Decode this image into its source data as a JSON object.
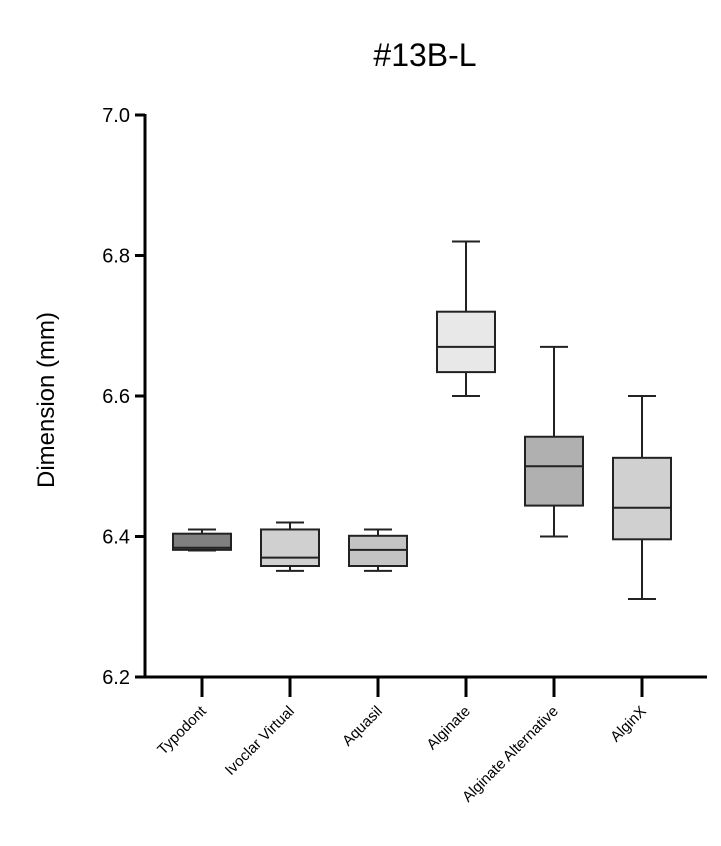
{
  "chart_data": {
    "type": "box",
    "title": "#13B-L",
    "xlabel": "",
    "ylabel": "Dimension (mm)",
    "ylim": [
      6.2,
      7.0
    ],
    "yticks": [
      "6.2",
      "6.4",
      "6.6",
      "6.8",
      "7.0"
    ],
    "grid": false,
    "categories": [
      "Typodont",
      "Ivoclar Virtual",
      "Aquasil",
      "Alginate",
      "Alginate Alternative",
      "AlginX"
    ],
    "boxes": [
      {
        "category": "Typodont",
        "min": 6.38,
        "q1": 6.381,
        "median": 6.384,
        "q3": 6.404,
        "max": 6.41,
        "color": "#808080"
      },
      {
        "category": "Ivoclar Virtual",
        "min": 6.351,
        "q1": 6.358,
        "median": 6.37,
        "q3": 6.41,
        "max": 6.42,
        "color": "#d0d0d0"
      },
      {
        "category": "Aquasil",
        "min": 6.351,
        "q1": 6.358,
        "median": 6.381,
        "q3": 6.401,
        "max": 6.41,
        "color": "#c4c4c4"
      },
      {
        "category": "Alginate",
        "min": 6.6,
        "q1": 6.634,
        "median": 6.67,
        "q3": 6.72,
        "max": 6.82,
        "color": "#e8e8e8"
      },
      {
        "category": "Alginate Alternative",
        "min": 6.4,
        "q1": 6.444,
        "median": 6.5,
        "q3": 6.542,
        "max": 6.67,
        "color": "#b0b0b0"
      },
      {
        "category": "AlginX",
        "min": 6.311,
        "q1": 6.396,
        "median": 6.441,
        "q3": 6.512,
        "max": 6.6,
        "color": "#d0d0d0"
      }
    ]
  }
}
